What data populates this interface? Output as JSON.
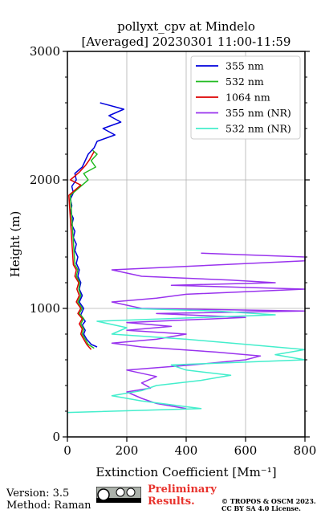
{
  "chart_data": {
    "type": "line",
    "title_line1": "pollyxt_cpv at Mindelo",
    "title_line2": "[Averaged] 20230301 11:00-11:59",
    "xlabel": "Extinction Coefficient [Mm⁻¹]",
    "ylabel": "Height (m)",
    "xlim": [
      0,
      800
    ],
    "ylim": [
      0,
      3000
    ],
    "xticks": [
      "0",
      "200",
      "400",
      "600",
      "800"
    ],
    "yticks": [
      "0",
      "1000",
      "2000",
      "3000"
    ],
    "grid": true,
    "legend_position": "top-right",
    "series": [
      {
        "name": "355 nm",
        "color": "#0000dd",
        "points": [
          [
            100,
            700
          ],
          [
            80,
            720
          ],
          [
            65,
            760
          ],
          [
            55,
            800
          ],
          [
            60,
            830
          ],
          [
            50,
            870
          ],
          [
            60,
            900
          ],
          [
            45,
            950
          ],
          [
            55,
            1000
          ],
          [
            40,
            1050
          ],
          [
            50,
            1100
          ],
          [
            40,
            1150
          ],
          [
            45,
            1200
          ],
          [
            35,
            1250
          ],
          [
            40,
            1300
          ],
          [
            30,
            1350
          ],
          [
            35,
            1400
          ],
          [
            25,
            1450
          ],
          [
            30,
            1500
          ],
          [
            20,
            1550
          ],
          [
            25,
            1600
          ],
          [
            15,
            1650
          ],
          [
            20,
            1700
          ],
          [
            10,
            1750
          ],
          [
            15,
            1800
          ],
          [
            10,
            1850
          ],
          [
            20,
            1900
          ],
          [
            15,
            1950
          ],
          [
            30,
            2000
          ],
          [
            25,
            2050
          ],
          [
            50,
            2100
          ],
          [
            60,
            2150
          ],
          [
            70,
            2200
          ],
          [
            90,
            2250
          ],
          [
            100,
            2300
          ],
          [
            160,
            2350
          ],
          [
            120,
            2400
          ],
          [
            180,
            2450
          ],
          [
            140,
            2500
          ],
          [
            190,
            2550
          ],
          [
            110,
            2600
          ]
        ]
      },
      {
        "name": "532 nm",
        "color": "#22bb22",
        "points": [
          [
            90,
            690
          ],
          [
            70,
            720
          ],
          [
            60,
            760
          ],
          [
            50,
            800
          ],
          [
            55,
            840
          ],
          [
            45,
            880
          ],
          [
            55,
            920
          ],
          [
            40,
            960
          ],
          [
            50,
            1000
          ],
          [
            35,
            1050
          ],
          [
            45,
            1100
          ],
          [
            38,
            1150
          ],
          [
            42,
            1200
          ],
          [
            30,
            1250
          ],
          [
            35,
            1300
          ],
          [
            25,
            1340
          ],
          [
            10,
            1880
          ],
          [
            30,
            1920
          ],
          [
            50,
            1960
          ],
          [
            70,
            2000
          ],
          [
            55,
            2050
          ],
          [
            95,
            2100
          ],
          [
            80,
            2150
          ],
          [
            100,
            2200
          ],
          [
            85,
            2230
          ]
        ]
      },
      {
        "name": "1064 nm",
        "color": "#dd0000",
        "points": [
          [
            80,
            680
          ],
          [
            65,
            720
          ],
          [
            55,
            760
          ],
          [
            45,
            800
          ],
          [
            50,
            840
          ],
          [
            40,
            880
          ],
          [
            50,
            920
          ],
          [
            35,
            960
          ],
          [
            45,
            1000
          ],
          [
            30,
            1050
          ],
          [
            40,
            1100
          ],
          [
            32,
            1150
          ],
          [
            38,
            1200
          ],
          [
            25,
            1250
          ],
          [
            30,
            1300
          ],
          [
            20,
            1340
          ],
          [
            5,
            1880
          ],
          [
            25,
            1920
          ],
          [
            45,
            1960
          ],
          [
            10,
            2000
          ],
          [
            40,
            2060
          ],
          [
            60,
            2110
          ],
          [
            75,
            2160
          ],
          [
            90,
            2220
          ]
        ]
      },
      {
        "name": "355 nm (NR)",
        "color": "#9933ee",
        "points": [
          [
            400,
            220
          ],
          [
            300,
            260
          ],
          [
            250,
            300
          ],
          [
            200,
            350
          ],
          [
            280,
            380
          ],
          [
            250,
            420
          ],
          [
            300,
            470
          ],
          [
            200,
            520
          ],
          [
            420,
            560
          ],
          [
            600,
            600
          ],
          [
            650,
            630
          ],
          [
            500,
            660
          ],
          [
            250,
            700
          ],
          [
            150,
            730
          ],
          [
            300,
            760
          ],
          [
            400,
            800
          ],
          [
            200,
            830
          ],
          [
            350,
            860
          ],
          [
            200,
            890
          ],
          [
            600,
            930
          ],
          [
            300,
            960
          ],
          [
            800,
            980
          ],
          [
            250,
            1000
          ],
          [
            150,
            1050
          ],
          [
            300,
            1080
          ],
          [
            400,
            1110
          ],
          [
            800,
            1150
          ],
          [
            350,
            1180
          ],
          [
            700,
            1200
          ],
          [
            550,
            1220
          ],
          [
            250,
            1250
          ],
          [
            150,
            1300
          ],
          [
            800,
            1370
          ],
          [
            800,
            1400
          ],
          [
            450,
            1430
          ]
        ]
      },
      {
        "name": "532 nm (NR)",
        "color": "#44eecc",
        "points": [
          [
            0,
            190
          ],
          [
            450,
            220
          ],
          [
            350,
            250
          ],
          [
            250,
            280
          ],
          [
            150,
            320
          ],
          [
            250,
            360
          ],
          [
            300,
            400
          ],
          [
            450,
            440
          ],
          [
            550,
            480
          ],
          [
            400,
            520
          ],
          [
            350,
            560
          ],
          [
            800,
            600
          ],
          [
            700,
            640
          ],
          [
            800,
            680
          ],
          [
            600,
            720
          ],
          [
            400,
            760
          ],
          [
            150,
            800
          ],
          [
            200,
            850
          ],
          [
            100,
            900
          ],
          [
            700,
            950
          ],
          [
            500,
            980
          ],
          [
            200,
            1000
          ]
        ]
      }
    ]
  },
  "footer": {
    "version": "Version: 3.5",
    "method": "Method: Raman",
    "prelim_line1": "Preliminary",
    "prelim_line2": "Results.",
    "copyright_line1": "© TROPOS & OSCM 2023.",
    "copyright_line2": "CC BY SA 4.0 License."
  }
}
